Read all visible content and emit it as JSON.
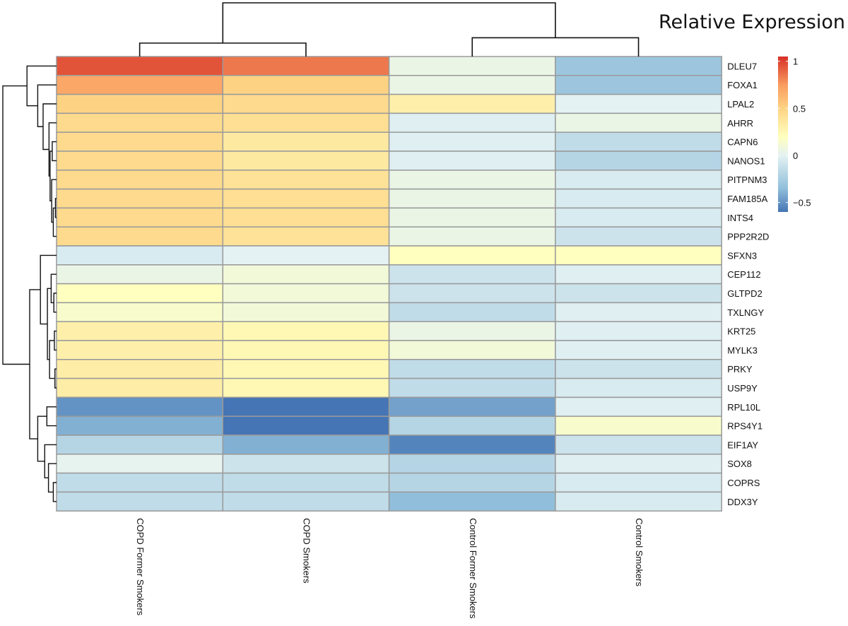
{
  "chart_data": {
    "type": "heatmap",
    "title": "Relative Expression",
    "columns": [
      "COPD Former Smokers",
      "COPD Smokers",
      "Control Former Smokers",
      "Control Smokers"
    ],
    "rows": [
      "DLEU7",
      "FOXA1",
      "LPAL2",
      "AHRR",
      "CAPN6",
      "NANOS1",
      "PITPNM3",
      "FAM185A",
      "INTS4",
      "PPP2R2D",
      "SFXN3",
      "CEP112",
      "GLTPD2",
      "TXLNGY",
      "KRT25",
      "MYLK3",
      "PRKY",
      "USP9Y",
      "RPL10L",
      "RPS4Y1",
      "EIF1AY",
      "SOX8",
      "COPRS",
      "DDX3Y"
    ],
    "values": [
      [
        0.95,
        0.85,
        0.05,
        -0.3
      ],
      [
        0.7,
        0.5,
        0.05,
        -0.3
      ],
      [
        0.5,
        0.45,
        0.3,
        0.0
      ],
      [
        0.45,
        0.42,
        -0.02,
        0.05
      ],
      [
        0.45,
        0.35,
        -0.02,
        -0.15
      ],
      [
        0.45,
        0.35,
        -0.02,
        -0.2
      ],
      [
        0.45,
        0.4,
        0.05,
        -0.05
      ],
      [
        0.45,
        0.42,
        0.05,
        -0.05
      ],
      [
        0.45,
        0.42,
        0.05,
        -0.05
      ],
      [
        0.45,
        0.4,
        0.05,
        -0.1
      ],
      [
        -0.05,
        0.0,
        0.2,
        0.2
      ],
      [
        0.05,
        0.1,
        -0.1,
        -0.02
      ],
      [
        0.2,
        0.1,
        -0.1,
        -0.1
      ],
      [
        0.15,
        0.1,
        -0.15,
        -0.02
      ],
      [
        0.3,
        0.25,
        0.05,
        -0.02
      ],
      [
        0.3,
        0.25,
        0.1,
        -0.02
      ],
      [
        0.32,
        0.25,
        -0.15,
        -0.1
      ],
      [
        0.32,
        0.25,
        -0.15,
        -0.05
      ],
      [
        -0.5,
        -0.6,
        -0.45,
        -0.02
      ],
      [
        -0.4,
        -0.6,
        -0.2,
        0.15
      ],
      [
        -0.2,
        -0.4,
        -0.55,
        -0.1
      ],
      [
        0.02,
        -0.1,
        -0.2,
        -0.02
      ],
      [
        -0.15,
        -0.15,
        -0.2,
        -0.05
      ],
      [
        -0.15,
        -0.15,
        -0.35,
        -0.05
      ]
    ],
    "color_scale": {
      "min": -0.6,
      "max": 1.05,
      "stops": [
        {
          "v": -0.6,
          "c": "#4575b4"
        },
        {
          "v": -0.35,
          "c": "#91bfdb"
        },
        {
          "v": 0.0,
          "c": "#e4f2f3"
        },
        {
          "v": 0.2,
          "c": "#ffffbf"
        },
        {
          "v": 0.5,
          "c": "#fdd383"
        },
        {
          "v": 0.75,
          "c": "#f99c60"
        },
        {
          "v": 1.05,
          "c": "#d73027"
        }
      ]
    },
    "legend_ticks": [
      {
        "value": 1,
        "label": "1"
      },
      {
        "value": 0.5,
        "label": "0.5"
      },
      {
        "value": 0,
        "label": "0"
      },
      {
        "value": -0.5,
        "label": "−0.5"
      }
    ],
    "column_dendrogram": [
      {
        "a": "c0",
        "b": "c1",
        "id": "n01",
        "h": 0.25
      },
      {
        "a": "c2",
        "b": "c3",
        "id": "n23",
        "h": 0.35
      },
      {
        "a": "n01",
        "b": "n23",
        "id": "root",
        "h": 1.0
      }
    ],
    "row_dendrogram": [
      {
        "a": "r4",
        "b": "r5",
        "id": "A",
        "h": 0.08
      },
      {
        "a": "r7",
        "b": "r8",
        "id": "B",
        "h": 0.02
      },
      {
        "a": "r9",
        "b": "B",
        "id": "C",
        "h": 0.06
      },
      {
        "a": "r6",
        "b": "C",
        "id": "D",
        "h": 0.09
      },
      {
        "a": "A",
        "b": "D",
        "id": "E",
        "h": 0.12
      },
      {
        "a": "r3",
        "b": "E",
        "id": "F",
        "h": 0.14
      },
      {
        "a": "r2",
        "b": "F",
        "id": "G",
        "h": 0.25
      },
      {
        "a": "r1",
        "b": "G",
        "id": "H",
        "h": 0.35
      },
      {
        "a": "r0",
        "b": "H",
        "id": "I",
        "h": 0.55
      },
      {
        "a": "r12",
        "b": "r13",
        "id": "J",
        "h": 0.05
      },
      {
        "a": "r11",
        "b": "J",
        "id": "K",
        "h": 0.1
      },
      {
        "a": "r14",
        "b": "r15",
        "id": "L",
        "h": 0.04
      },
      {
        "a": "r16",
        "b": "r17",
        "id": "M",
        "h": 0.03
      },
      {
        "a": "L",
        "b": "M",
        "id": "N",
        "h": 0.13
      },
      {
        "a": "K",
        "b": "N",
        "id": "O",
        "h": 0.17
      },
      {
        "a": "r10",
        "b": "O",
        "id": "P",
        "h": 0.3
      },
      {
        "a": "r22",
        "b": "r23",
        "id": "Q",
        "h": 0.06
      },
      {
        "a": "r21",
        "b": "Q",
        "id": "R",
        "h": 0.15
      },
      {
        "a": "r20",
        "b": "R",
        "id": "S",
        "h": 0.22
      },
      {
        "a": "r18",
        "b": "r19",
        "id": "T",
        "h": 0.18
      },
      {
        "a": "T",
        "b": "S",
        "id": "U",
        "h": 0.35
      },
      {
        "a": "P",
        "b": "U",
        "id": "V",
        "h": 0.5
      },
      {
        "a": "I",
        "b": "V",
        "id": "root",
        "h": 1.0
      }
    ]
  }
}
